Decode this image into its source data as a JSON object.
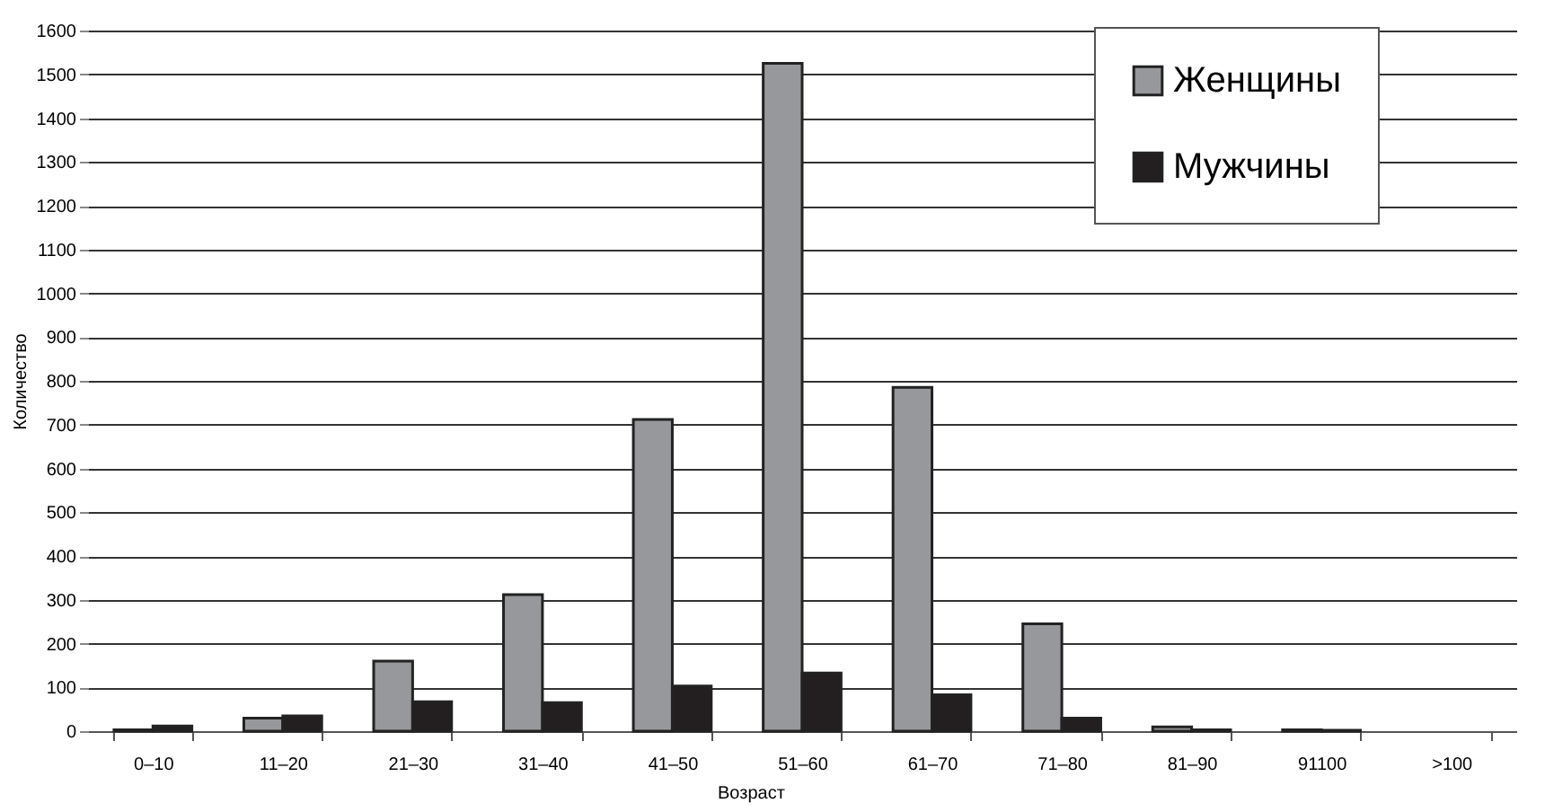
{
  "chart_data": {
    "type": "bar",
    "xlabel": "Возраст",
    "ylabel": "Количество",
    "categories": [
      "0–10",
      "11–20",
      "21–30",
      "31–40",
      "41–50",
      "51–60",
      "61–70",
      "71–80",
      "81–90",
      "91100",
      ">100"
    ],
    "series": [
      {
        "name": "Женщины",
        "color": "#97989b",
        "values": [
          3,
          30,
          160,
          312,
          712,
          1525,
          785,
          245,
          10,
          3,
          null
        ]
      },
      {
        "name": "Мужчины",
        "color": "#231f20",
        "values": [
          12,
          35,
          67,
          65,
          103,
          133,
          83,
          30,
          3,
          2,
          null
        ]
      }
    ],
    "ylim": [
      0,
      1600
    ],
    "yticks": [
      0,
      100,
      200,
      300,
      400,
      500,
      600,
      700,
      800,
      900,
      1000,
      1100,
      1200,
      1300,
      1400,
      1500,
      1600
    ],
    "grid": "y",
    "legend": "top right"
  }
}
